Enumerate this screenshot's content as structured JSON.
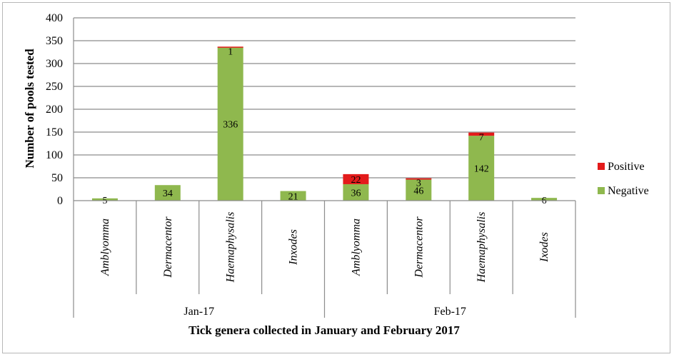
{
  "chart_data": {
    "type": "bar",
    "stacked": true,
    "groups": [
      {
        "label": "Jan-17",
        "categories": [
          "Amblyomma",
          "Dermacentor",
          "Haemaphysalis",
          "Inxodes"
        ]
      },
      {
        "label": "Feb-17",
        "categories": [
          "Amblyomma",
          "Dermacentor",
          "Haemaphysalis",
          "Ixodes"
        ]
      }
    ],
    "categories": [
      "Amblyomma",
      "Dermacentor",
      "Haemaphysalis",
      "Inxodes",
      "Amblyomma",
      "Dermacentor",
      "Haemaphysalis",
      "Ixodes"
    ],
    "series": [
      {
        "name": "Negative",
        "color": "#8fb84e",
        "values": [
          5,
          34,
          336,
          21,
          36,
          46,
          142,
          6
        ]
      },
      {
        "name": "Positive",
        "color": "#e31b1b",
        "values": [
          0,
          0,
          1,
          0,
          22,
          3,
          7,
          0
        ]
      }
    ],
    "labels": {
      "Negative": [
        "5",
        "34",
        "336",
        "21",
        "36",
        "46",
        "142",
        "6"
      ],
      "Positive": [
        "",
        "",
        "1",
        "",
        "22",
        "3",
        "7",
        ""
      ]
    },
    "ylabel": "Number of pools tested",
    "xlabel": "Tick genera collected in January and February 2017",
    "ylim": [
      0,
      400
    ],
    "yticks": [
      0,
      50,
      100,
      150,
      200,
      250,
      300,
      350,
      400
    ],
    "grid": true,
    "legend_position": "right"
  }
}
